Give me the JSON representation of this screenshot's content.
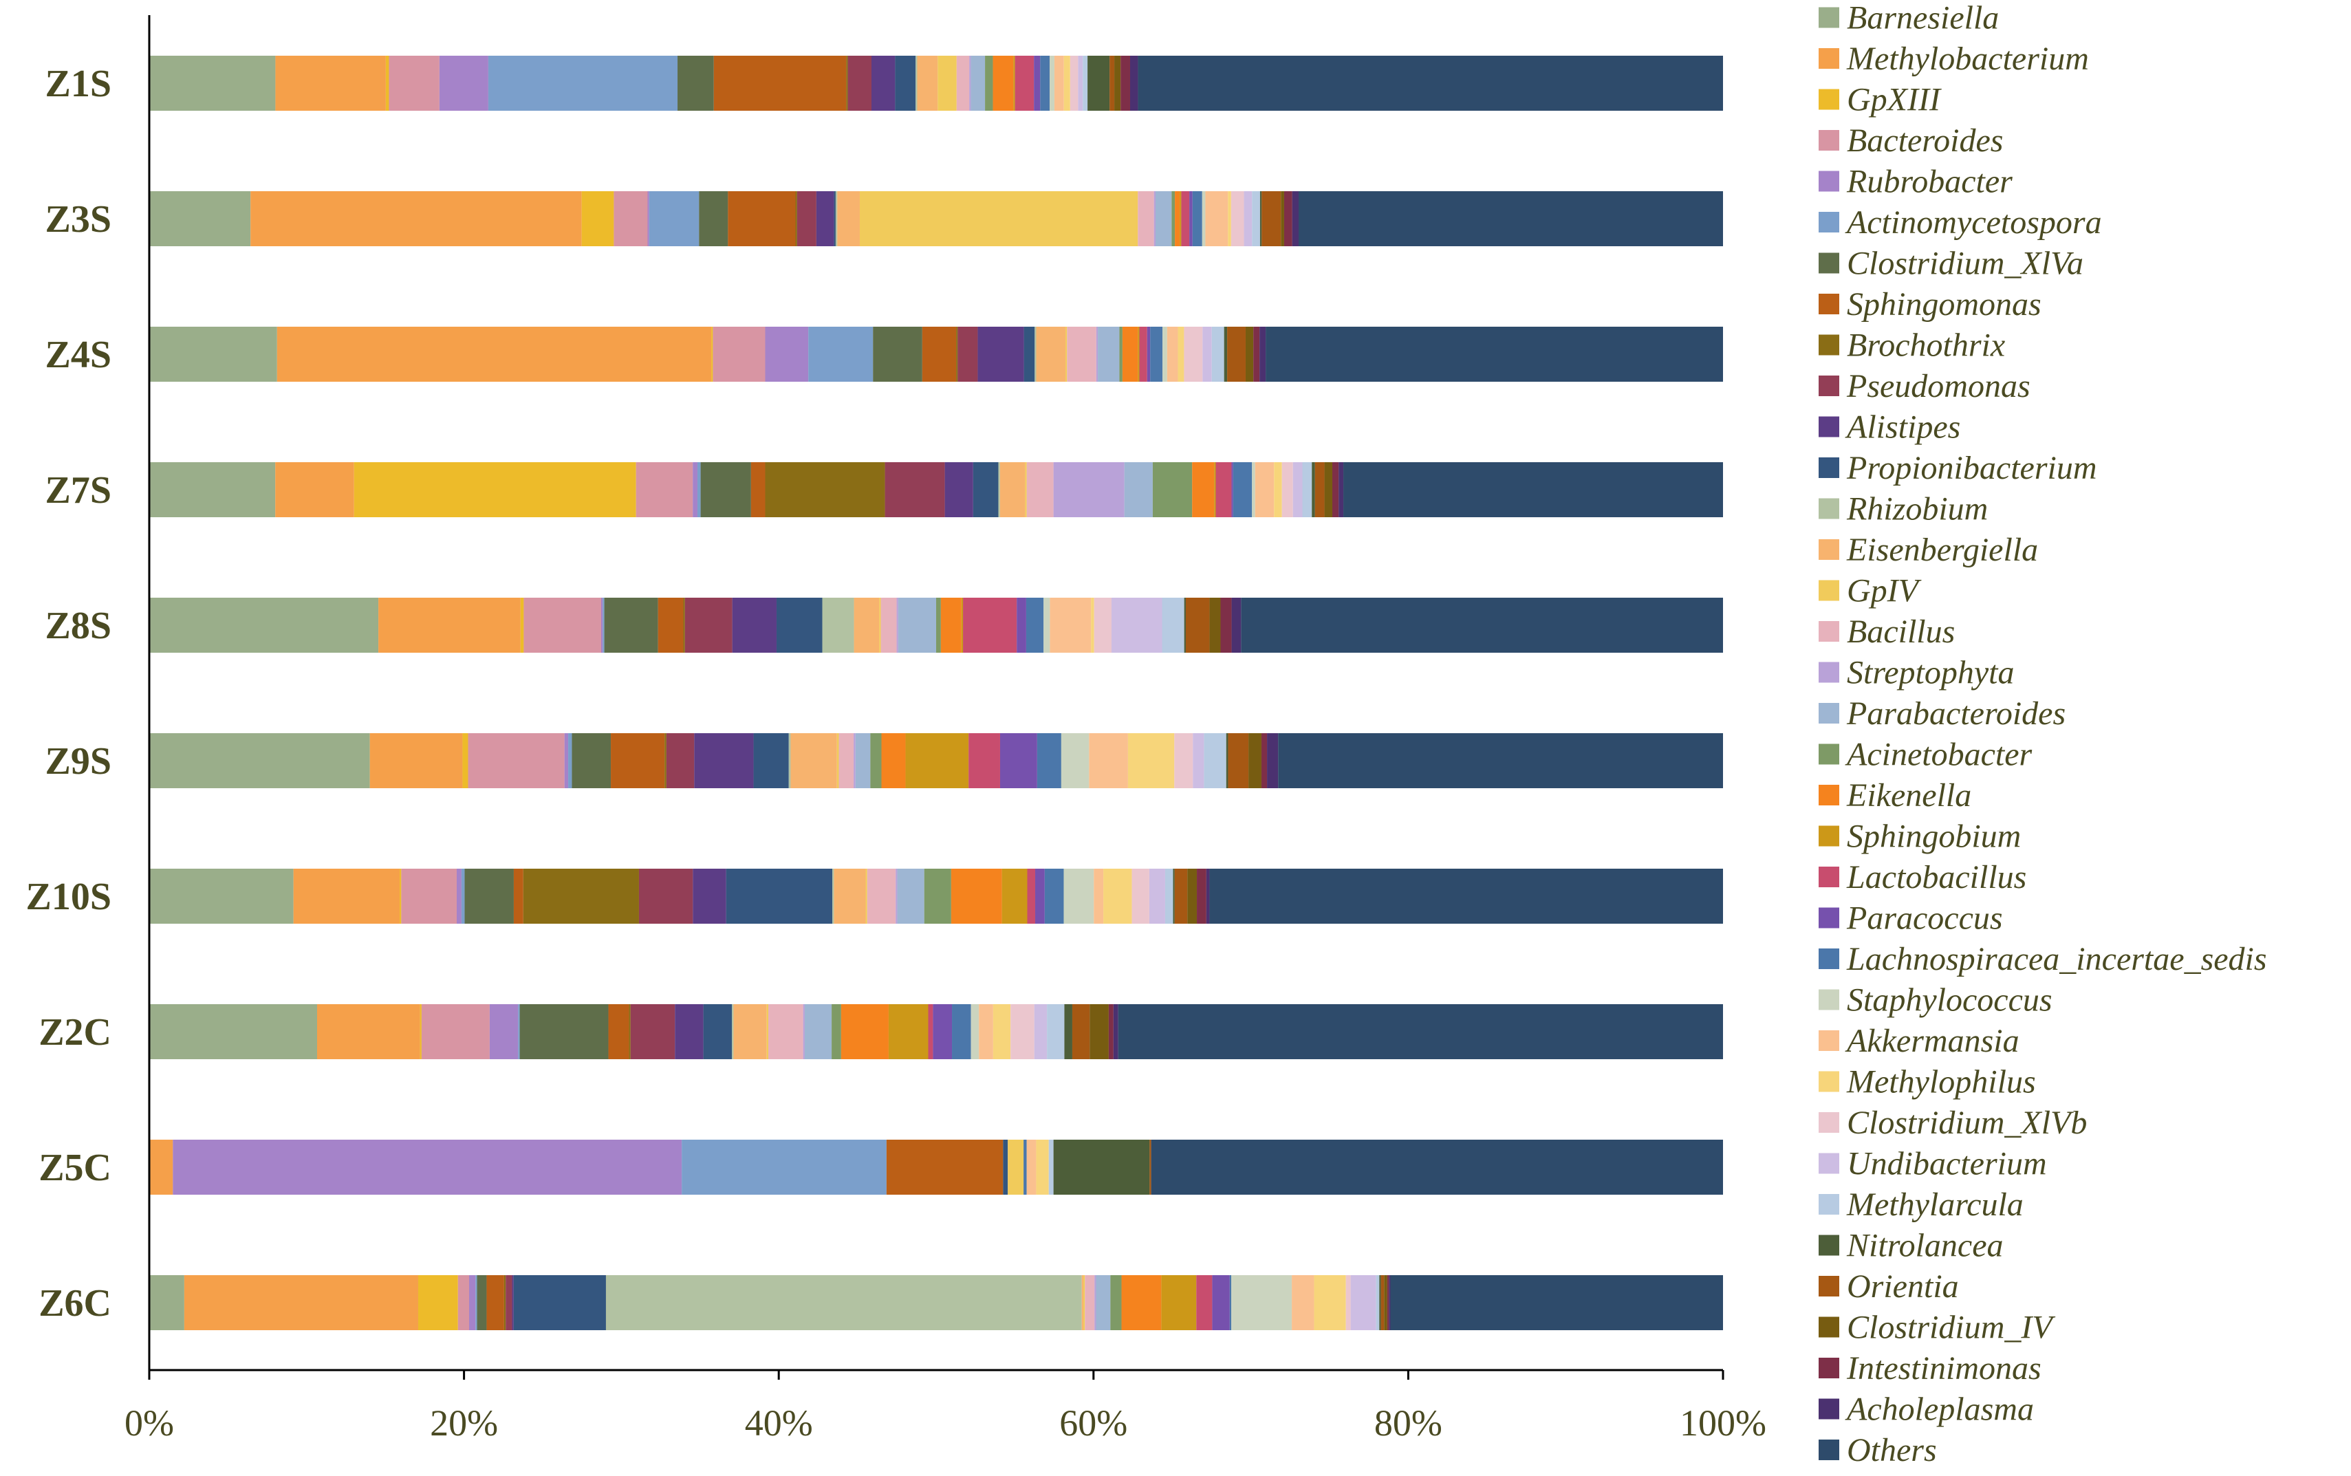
{
  "chart_data": {
    "type": "bar",
    "orientation": "horizontal",
    "stacked": true,
    "normalized_percent": true,
    "title": "",
    "xlabel": "",
    "ylabel": "",
    "xlim": [
      0,
      100
    ],
    "x_ticks": [
      "0%",
      "20%",
      "40%",
      "60%",
      "80%",
      "100%"
    ],
    "legend_position": "right",
    "categories": [
      "Z1S",
      "Z3S",
      "Z4S",
      "Z7S",
      "Z8S",
      "Z9S",
      "Z10S",
      "Z2C",
      "Z5C",
      "Z6C"
    ],
    "series": [
      {
        "name": "Barnesiella",
        "color": "#9aae8a",
        "values": [
          8.0,
          6.3,
          8.3,
          8.0,
          14.5,
          11.9,
          9.1,
          10.6,
          0.0,
          2.2
        ]
      },
      {
        "name": "Methylobacterium",
        "color": "#f5a04a",
        "values": [
          7.0,
          20.6,
          28.2,
          5.0,
          9.0,
          5.0,
          6.7,
          6.5,
          1.5,
          14.7
        ]
      },
      {
        "name": "GpXIII",
        "color": "#edbb2a",
        "values": [
          0.2,
          2.0,
          0.1,
          17.9,
          0.2,
          0.3,
          0.1,
          0.1,
          0.0,
          2.5
        ]
      },
      {
        "name": "Bacteroides",
        "color": "#d895a3",
        "values": [
          3.2,
          2.1,
          3.4,
          3.6,
          4.9,
          5.2,
          3.5,
          4.3,
          0.0,
          0.7
        ]
      },
      {
        "name": "Rubrobacter",
        "color": "#a583c9",
        "values": [
          3.1,
          0.1,
          2.8,
          0.3,
          0.1,
          0.2,
          0.3,
          1.8,
          32.3,
          0.4
        ]
      },
      {
        "name": "Actinomycetospora",
        "color": "#7b9fcb",
        "values": [
          12.0,
          3.1,
          4.2,
          0.2,
          0.1,
          0.2,
          0.2,
          0.1,
          13.0,
          0.1
        ]
      },
      {
        "name": "Clostridium_XlVa",
        "color": "#5f6e4a",
        "values": [
          2.3,
          1.8,
          3.2,
          3.2,
          3.4,
          2.1,
          3.1,
          5.6,
          0.0,
          0.6
        ]
      },
      {
        "name": "Sphingomonas",
        "color": "#bb5f16",
        "values": [
          8.4,
          4.2,
          2.2,
          0.9,
          1.6,
          2.9,
          0.6,
          1.3,
          7.4,
          1.1
        ]
      },
      {
        "name": "Brochothrix",
        "color": "#8a6d15",
        "values": [
          0.1,
          0.1,
          0.1,
          7.6,
          0.1,
          0.1,
          7.3,
          0.1,
          0.0,
          0.1
        ]
      },
      {
        "name": "Pseudomonas",
        "color": "#933e56",
        "values": [
          1.5,
          1.2,
          1.3,
          3.8,
          3.0,
          1.5,
          3.4,
          2.8,
          0.0,
          0.4
        ]
      },
      {
        "name": "Alistipes",
        "color": "#5c3d86",
        "values": [
          1.5,
          1.1,
          3.0,
          1.8,
          2.8,
          3.2,
          2.1,
          1.8,
          0.0,
          0.1
        ]
      },
      {
        "name": "Propionibacterium",
        "color": "#34567f",
        "values": [
          1.3,
          0.1,
          0.7,
          1.6,
          2.9,
          1.9,
          6.7,
          1.8,
          0.3,
          5.8
        ]
      },
      {
        "name": "Rhizobium",
        "color": "#b2c2a2",
        "values": [
          0.1,
          0.1,
          0.1,
          0.1,
          2.0,
          0.1,
          0.1,
          0.1,
          0.0,
          29.9
        ]
      },
      {
        "name": "Eisenbergiella",
        "color": "#f7b36e",
        "values": [
          1.3,
          1.4,
          1.9,
          1.6,
          1.6,
          2.5,
          2.0,
          2.1,
          0.0,
          0.1
        ]
      },
      {
        "name": "GpIV",
        "color": "#f1cb5b",
        "values": [
          1.2,
          17.3,
          0.1,
          0.1,
          0.1,
          0.1,
          0.1,
          0.1,
          1.0,
          0.1
        ]
      },
      {
        "name": "Bacillus",
        "color": "#e7b2bc",
        "values": [
          0.8,
          1.0,
          1.9,
          1.7,
          1.0,
          0.8,
          1.8,
          2.2,
          0.0,
          0.6
        ]
      },
      {
        "name": "Streptophyta",
        "color": "#b9a2d8",
        "values": [
          0.1,
          0.1,
          0.1,
          4.5,
          0.1,
          0.1,
          0.1,
          0.1,
          0.0,
          0.1
        ]
      },
      {
        "name": "Parabacteroides",
        "color": "#9eb6d3",
        "values": [
          0.9,
          1.0,
          1.4,
          1.8,
          2.4,
          0.8,
          1.7,
          1.7,
          0.0,
          0.9
        ]
      },
      {
        "name": "Acinetobacter",
        "color": "#7e9a66",
        "values": [
          0.5,
          0.2,
          0.2,
          2.5,
          0.3,
          0.6,
          1.7,
          0.6,
          0.0,
          0.7
        ]
      },
      {
        "name": "Eikenella",
        "color": "#f5831e",
        "values": [
          1.3,
          0.3,
          1.0,
          1.4,
          1.3,
          1.3,
          3.2,
          3.0,
          0.0,
          2.5
        ]
      },
      {
        "name": "Sphingobium",
        "color": "#cc9818",
        "values": [
          0.1,
          0.1,
          0.1,
          0.1,
          0.1,
          3.4,
          1.6,
          2.5,
          0.0,
          2.2
        ]
      },
      {
        "name": "Lactobacillus",
        "color": "#c84d6e",
        "values": [
          1.2,
          0.5,
          0.5,
          1.0,
          3.4,
          1.7,
          0.5,
          0.3,
          0.0,
          1.0
        ]
      },
      {
        "name": "Paracoccus",
        "color": "#7651ad",
        "values": [
          0.4,
          0.2,
          0.2,
          0.1,
          0.6,
          2.0,
          0.6,
          1.2,
          0.0,
          1.1
        ]
      },
      {
        "name": "Lachnospiracea_incertae_sedis",
        "color": "#4b77aa",
        "values": [
          0.6,
          0.6,
          0.8,
          1.2,
          1.1,
          1.3,
          1.2,
          1.2,
          0.2,
          0.1
        ]
      },
      {
        "name": "Staphylococcus",
        "color": "#cbd4bf",
        "values": [
          0.3,
          0.2,
          0.3,
          0.2,
          0.4,
          1.5,
          1.9,
          0.5,
          0.0,
          3.8
        ]
      },
      {
        "name": "Akkermansia",
        "color": "#fac08f",
        "values": [
          0.6,
          1.4,
          0.7,
          1.2,
          2.6,
          2.1,
          0.6,
          0.9,
          0.6,
          1.4
        ]
      },
      {
        "name": "Methylophilus",
        "color": "#f7d57a",
        "values": [
          0.4,
          0.2,
          0.4,
          0.5,
          0.2,
          2.5,
          1.8,
          1.1,
          0.8,
          2.0
        ]
      },
      {
        "name": "Clostridium_XlVb",
        "color": "#ebc6ce",
        "values": [
          0.5,
          0.8,
          1.2,
          0.7,
          1.1,
          1.0,
          1.1,
          1.5,
          0.0,
          0.3
        ]
      },
      {
        "name": "Undibacterium",
        "color": "#cdbde3",
        "values": [
          0.3,
          0.5,
          0.6,
          0.6,
          3.2,
          0.6,
          1.0,
          0.8,
          0.0,
          1.6
        ]
      },
      {
        "name": "Methylarcula",
        "color": "#b7cbe2",
        "values": [
          0.3,
          0.5,
          0.8,
          0.6,
          1.4,
          1.2,
          0.5,
          1.1,
          0.3,
          0.2
        ]
      },
      {
        "name": "Nitrolancea",
        "color": "#4d5e39",
        "values": [
          1.4,
          0.1,
          0.2,
          0.2,
          0.1,
          0.1,
          0.1,
          0.5,
          6.1,
          0.1
        ]
      },
      {
        "name": "Orientia",
        "color": "#a65813",
        "values": [
          0.3,
          1.2,
          1.2,
          0.6,
          1.5,
          1.1,
          0.8,
          1.1,
          0.1,
          0.2
        ]
      },
      {
        "name": "Clostridium_IV",
        "color": "#775c11",
        "values": [
          0.4,
          0.2,
          0.5,
          0.5,
          0.7,
          0.7,
          0.6,
          1.2,
          0.0,
          0.2
        ]
      },
      {
        "name": "Intestinimonas",
        "color": "#7e2f48",
        "values": [
          0.6,
          0.5,
          0.4,
          0.4,
          0.7,
          0.3,
          0.6,
          0.3,
          0.0,
          0.1
        ]
      },
      {
        "name": "Acholeplasma",
        "color": "#4b3170",
        "values": [
          0.5,
          0.4,
          0.4,
          0.3,
          0.6,
          0.6,
          0.2,
          0.3,
          0.0,
          0.1
        ]
      },
      {
        "name": "Others",
        "color": "#2e4b6b",
        "values": [
          37.1,
          26.4,
          29.7,
          24.1,
          30.5,
          24.0,
          32.4,
          38.2,
          36.3,
          20.9
        ]
      }
    ]
  }
}
